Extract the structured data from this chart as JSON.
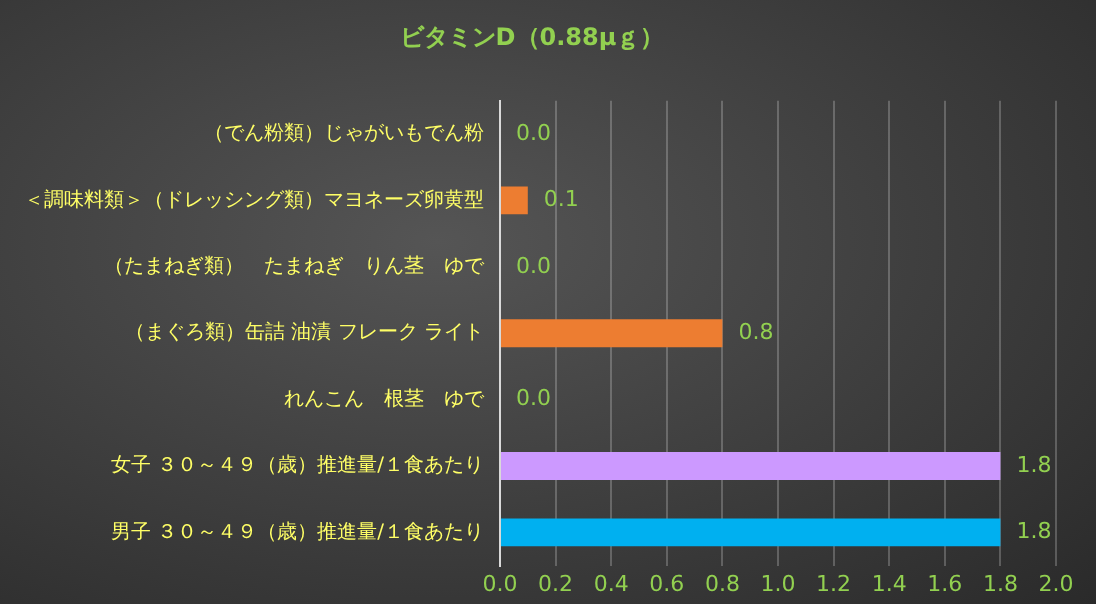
{
  "chart_data": {
    "type": "bar",
    "title": "ビタミンD（0.88μｇ）",
    "orientation": "horizontal",
    "categories": [
      "（でん粉類）じゃがいもでん粉",
      "＜調味料類＞（ドレッシング類）マヨネーズ卵黄型",
      "（たまねぎ類）　たまねぎ　りん茎　ゆで",
      "（まぐろ類）缶詰 油漬 フレーク ライト",
      "れんこん　根茎　ゆで",
      "女子 ３０～４９（歳）推進量/１食あたり",
      "男子 ３０～４９（歳）推進量/１食あたり"
    ],
    "values": [
      0,
      0.1,
      0,
      0.8,
      0,
      1.8,
      1.8
    ],
    "value_labels": [
      "0.0",
      "0.1",
      "0.0",
      "0.8",
      "0.0",
      "1.8",
      "1.8"
    ],
    "colors": [
      "#ed7d31",
      "#ed7d31",
      "#ed7d31",
      "#ed7d31",
      "#ed7d31",
      "#cc99ff",
      "#00b0f0"
    ],
    "xlim": [
      0,
      2
    ],
    "xticks": [
      {
        "value": 0,
        "label": "0.0"
      },
      0.2,
      0.4,
      0.6,
      0.8,
      {
        "value": 1,
        "label": "1.0"
      },
      1.2,
      1.4,
      1.6,
      1.8,
      {
        "value": 2,
        "label": "2.0"
      }
    ],
    "grid": "x"
  }
}
